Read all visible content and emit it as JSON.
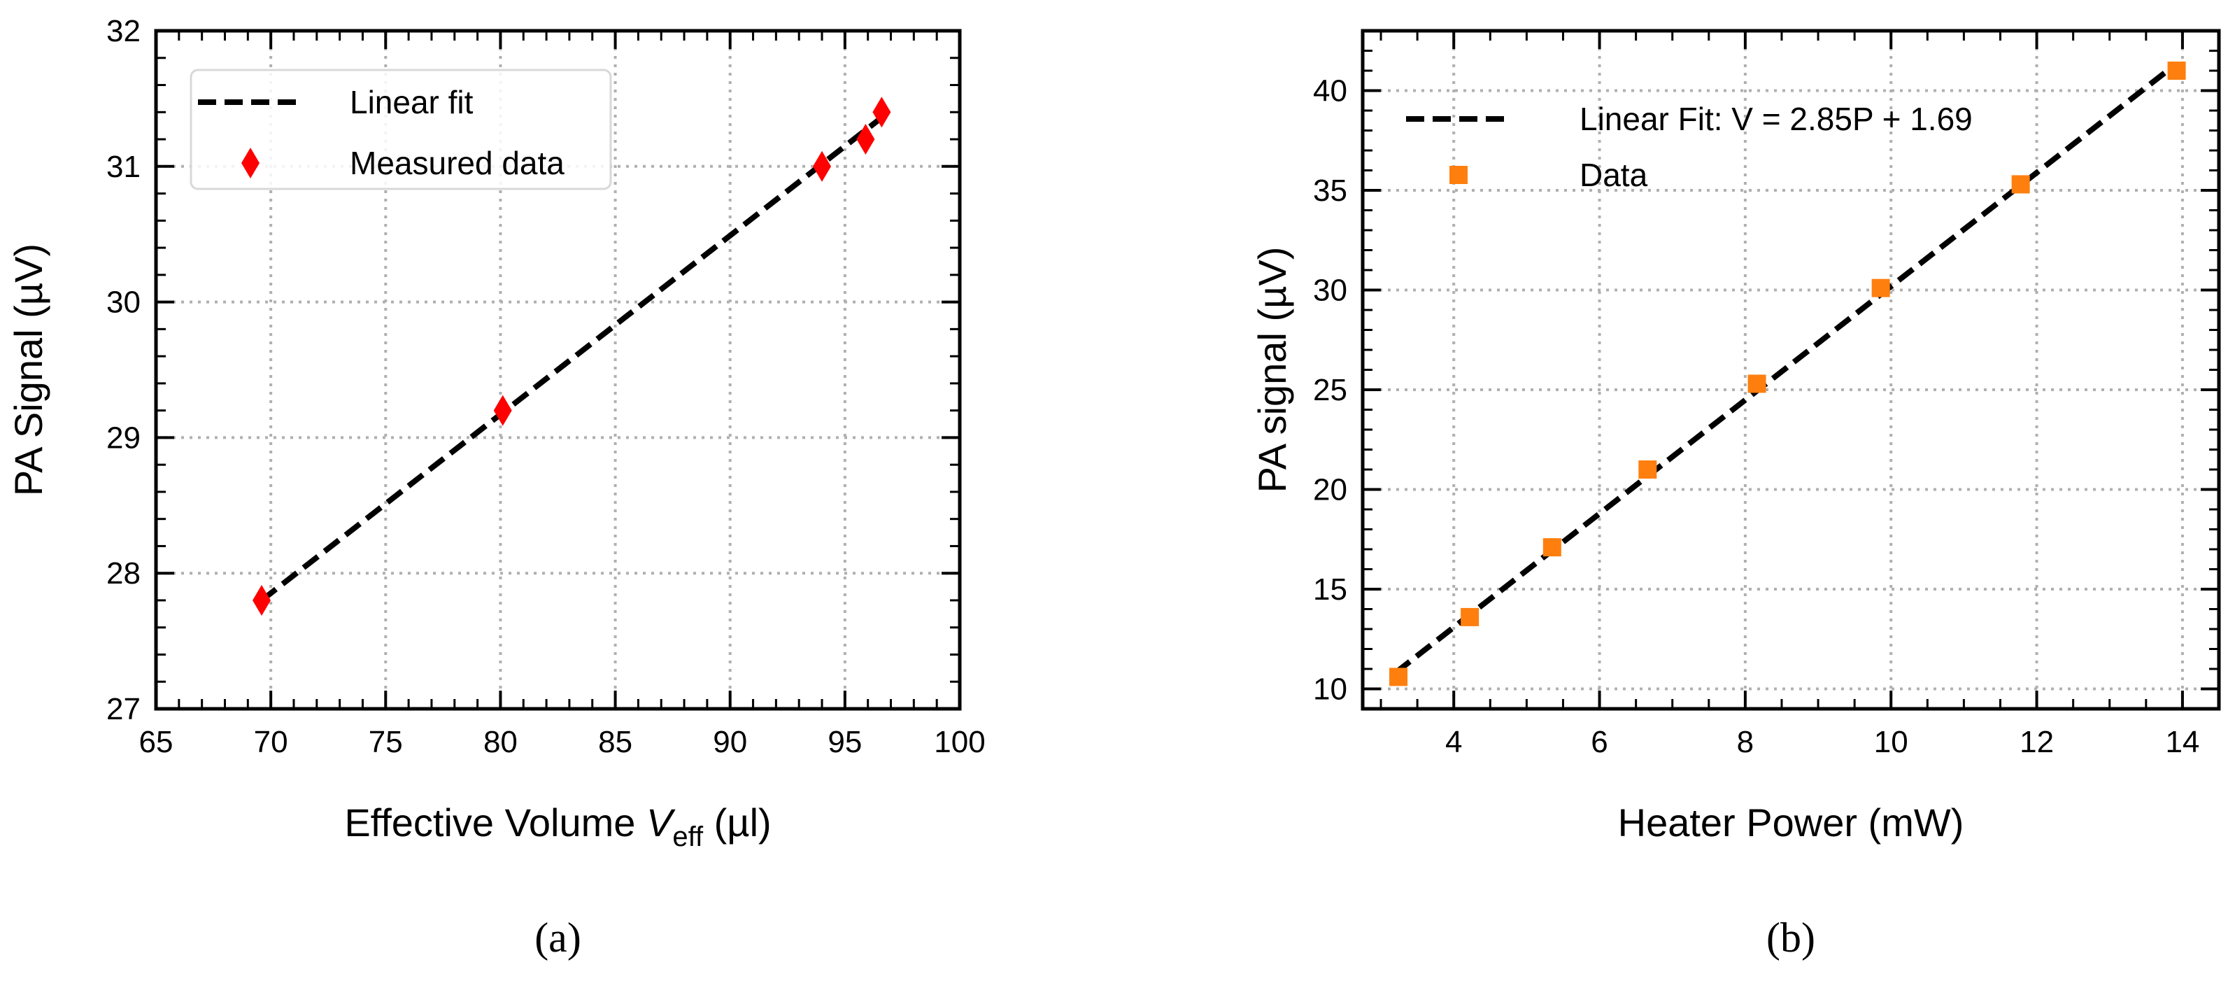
{
  "chart_data": [
    {
      "type": "scatter",
      "panel_label": "(a)",
      "xlabel": "Effective Volume",
      "xlabel_symbol": "V",
      "xlabel_subscript": "eff",
      "xlabel_unit": "(µl)",
      "ylabel": "PA Signal (µV)",
      "xlim": [
        65,
        100
      ],
      "ylim": [
        27,
        32
      ],
      "x_ticks": [
        65,
        70,
        75,
        80,
        85,
        90,
        95,
        100
      ],
      "y_ticks": [
        27,
        28,
        29,
        30,
        31,
        32
      ],
      "grid": true,
      "legend_position": "top-left",
      "series": [
        {
          "name": "Linear fit",
          "kind": "line",
          "style": "dashed",
          "color": "#000000",
          "x": [
            69.6,
            96.6
          ],
          "y": [
            27.8,
            31.36
          ]
        },
        {
          "name": "Measured data",
          "kind": "marker",
          "marker": "diamond",
          "color": "#ff0000",
          "x": [
            69.6,
            80.1,
            94.0,
            95.9,
            96.6
          ],
          "y": [
            27.8,
            29.2,
            31.0,
            31.2,
            31.4
          ]
        }
      ]
    },
    {
      "type": "scatter",
      "panel_label": "(b)",
      "xlabel": "Heater Power (mW)",
      "ylabel": "PA signal (µV)",
      "xlim": [
        2.75,
        14.5
      ],
      "ylim": [
        9,
        43
      ],
      "x_ticks": [
        4,
        6,
        8,
        10,
        12,
        14
      ],
      "y_ticks": [
        10,
        15,
        20,
        25,
        30,
        35,
        40
      ],
      "grid": true,
      "legend_position": "top-left",
      "series": [
        {
          "name": "Linear Fit: V = 2.85P + 1.69",
          "kind": "line",
          "style": "dashed",
          "color": "#000000",
          "x": [
            3.2,
            13.9
          ],
          "y": [
            10.81,
            41.3
          ]
        },
        {
          "name": "Data",
          "kind": "marker",
          "marker": "square",
          "color": "#ff7f0e",
          "x": [
            3.24,
            4.22,
            5.35,
            6.66,
            8.16,
            9.86,
            11.78,
            13.92
          ],
          "y": [
            10.6,
            13.6,
            17.1,
            21.0,
            25.3,
            30.1,
            35.3,
            41.0
          ]
        }
      ]
    }
  ]
}
